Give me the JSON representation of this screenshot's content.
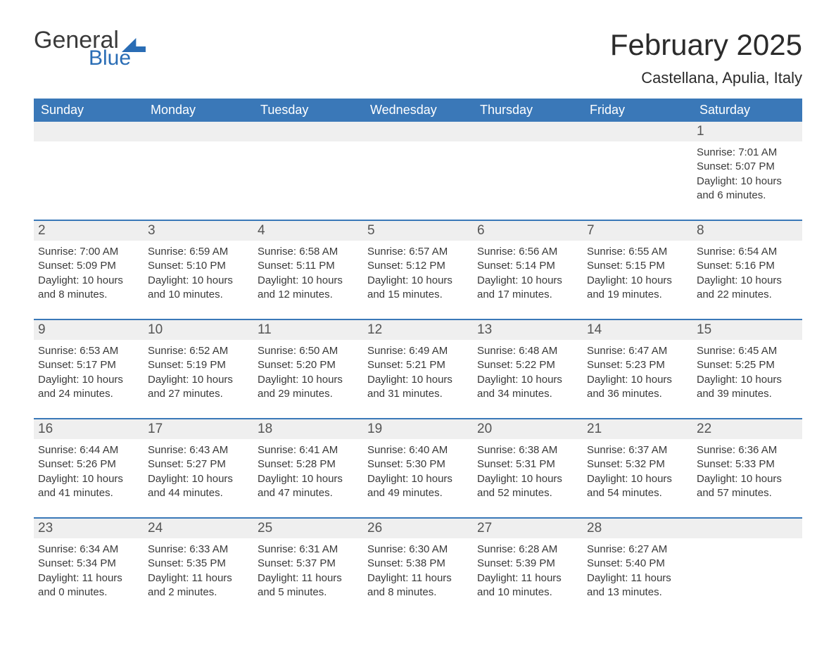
{
  "logo": {
    "word1": "General",
    "word2": "Blue"
  },
  "title": "February 2025",
  "location": "Castellana, Apulia, Italy",
  "colors": {
    "header_bg": "#3a78b8",
    "header_text": "#ffffff",
    "rule": "#3a78b8",
    "daynum_bg": "#efefef",
    "body_text": "#3a3a3a",
    "logo_blue": "#2a6db5"
  },
  "weekdays": [
    "Sunday",
    "Monday",
    "Tuesday",
    "Wednesday",
    "Thursday",
    "Friday",
    "Saturday"
  ],
  "weeks": [
    [
      null,
      null,
      null,
      null,
      null,
      null,
      {
        "n": "1",
        "sr": "7:01 AM",
        "ss": "5:07 PM",
        "dl": "10 hours and 6 minutes."
      }
    ],
    [
      {
        "n": "2",
        "sr": "7:00 AM",
        "ss": "5:09 PM",
        "dl": "10 hours and 8 minutes."
      },
      {
        "n": "3",
        "sr": "6:59 AM",
        "ss": "5:10 PM",
        "dl": "10 hours and 10 minutes."
      },
      {
        "n": "4",
        "sr": "6:58 AM",
        "ss": "5:11 PM",
        "dl": "10 hours and 12 minutes."
      },
      {
        "n": "5",
        "sr": "6:57 AM",
        "ss": "5:12 PM",
        "dl": "10 hours and 15 minutes."
      },
      {
        "n": "6",
        "sr": "6:56 AM",
        "ss": "5:14 PM",
        "dl": "10 hours and 17 minutes."
      },
      {
        "n": "7",
        "sr": "6:55 AM",
        "ss": "5:15 PM",
        "dl": "10 hours and 19 minutes."
      },
      {
        "n": "8",
        "sr": "6:54 AM",
        "ss": "5:16 PM",
        "dl": "10 hours and 22 minutes."
      }
    ],
    [
      {
        "n": "9",
        "sr": "6:53 AM",
        "ss": "5:17 PM",
        "dl": "10 hours and 24 minutes."
      },
      {
        "n": "10",
        "sr": "6:52 AM",
        "ss": "5:19 PM",
        "dl": "10 hours and 27 minutes."
      },
      {
        "n": "11",
        "sr": "6:50 AM",
        "ss": "5:20 PM",
        "dl": "10 hours and 29 minutes."
      },
      {
        "n": "12",
        "sr": "6:49 AM",
        "ss": "5:21 PM",
        "dl": "10 hours and 31 minutes."
      },
      {
        "n": "13",
        "sr": "6:48 AM",
        "ss": "5:22 PM",
        "dl": "10 hours and 34 minutes."
      },
      {
        "n": "14",
        "sr": "6:47 AM",
        "ss": "5:23 PM",
        "dl": "10 hours and 36 minutes."
      },
      {
        "n": "15",
        "sr": "6:45 AM",
        "ss": "5:25 PM",
        "dl": "10 hours and 39 minutes."
      }
    ],
    [
      {
        "n": "16",
        "sr": "6:44 AM",
        "ss": "5:26 PM",
        "dl": "10 hours and 41 minutes."
      },
      {
        "n": "17",
        "sr": "6:43 AM",
        "ss": "5:27 PM",
        "dl": "10 hours and 44 minutes."
      },
      {
        "n": "18",
        "sr": "6:41 AM",
        "ss": "5:28 PM",
        "dl": "10 hours and 47 minutes."
      },
      {
        "n": "19",
        "sr": "6:40 AM",
        "ss": "5:30 PM",
        "dl": "10 hours and 49 minutes."
      },
      {
        "n": "20",
        "sr": "6:38 AM",
        "ss": "5:31 PM",
        "dl": "10 hours and 52 minutes."
      },
      {
        "n": "21",
        "sr": "6:37 AM",
        "ss": "5:32 PM",
        "dl": "10 hours and 54 minutes."
      },
      {
        "n": "22",
        "sr": "6:36 AM",
        "ss": "5:33 PM",
        "dl": "10 hours and 57 minutes."
      }
    ],
    [
      {
        "n": "23",
        "sr": "6:34 AM",
        "ss": "5:34 PM",
        "dl": "11 hours and 0 minutes."
      },
      {
        "n": "24",
        "sr": "6:33 AM",
        "ss": "5:35 PM",
        "dl": "11 hours and 2 minutes."
      },
      {
        "n": "25",
        "sr": "6:31 AM",
        "ss": "5:37 PM",
        "dl": "11 hours and 5 minutes."
      },
      {
        "n": "26",
        "sr": "6:30 AM",
        "ss": "5:38 PM",
        "dl": "11 hours and 8 minutes."
      },
      {
        "n": "27",
        "sr": "6:28 AM",
        "ss": "5:39 PM",
        "dl": "11 hours and 10 minutes."
      },
      {
        "n": "28",
        "sr": "6:27 AM",
        "ss": "5:40 PM",
        "dl": "11 hours and 13 minutes."
      },
      null
    ]
  ],
  "labels": {
    "sunrise": "Sunrise: ",
    "sunset": "Sunset: ",
    "daylight": "Daylight: "
  }
}
